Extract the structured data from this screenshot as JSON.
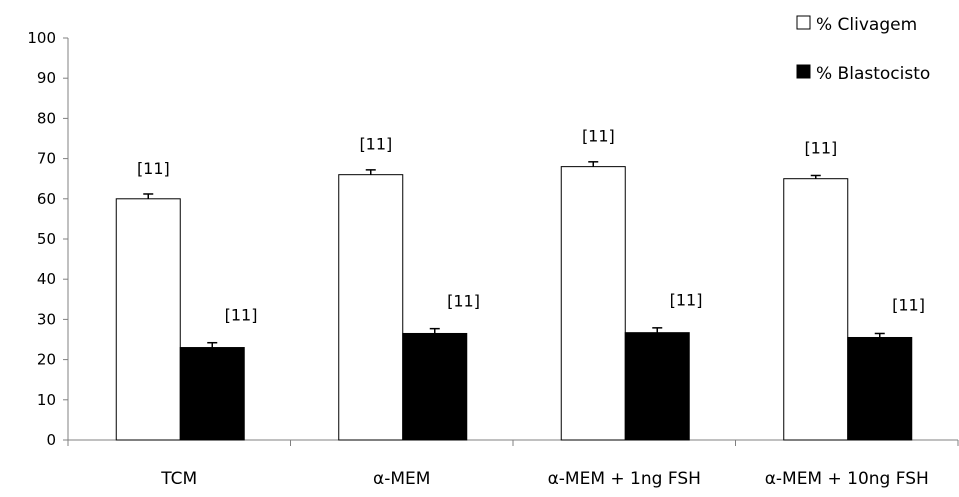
{
  "chart_data": {
    "type": "bar",
    "categories": [
      "TCM",
      "α-MEM",
      "α-MEM + 1ng FSH",
      "α-MEM + 10ng FSH"
    ],
    "series": [
      {
        "name": "% Clivagem",
        "color": "#ffffff",
        "values": [
          60,
          66,
          68,
          65
        ],
        "errors": [
          1.2,
          1.2,
          1.2,
          0.8
        ],
        "annotations": [
          "[11]",
          "[11]",
          "[11]",
          "[11]"
        ]
      },
      {
        "name": "% Blastocisto",
        "color": "#000000",
        "values": [
          23,
          26.5,
          26.7,
          25.5
        ],
        "errors": [
          1.2,
          1.2,
          1.2,
          1.0
        ],
        "annotations": [
          "[11]",
          "[11]",
          "[11]",
          "[11]"
        ]
      }
    ],
    "ylim": [
      0,
      100
    ],
    "yticks": [
      0,
      10,
      20,
      30,
      40,
      50,
      60,
      70,
      80,
      90,
      100
    ],
    "grid": false,
    "legend_position": "top-right",
    "title": "",
    "xlabel": "",
    "ylabel": ""
  }
}
